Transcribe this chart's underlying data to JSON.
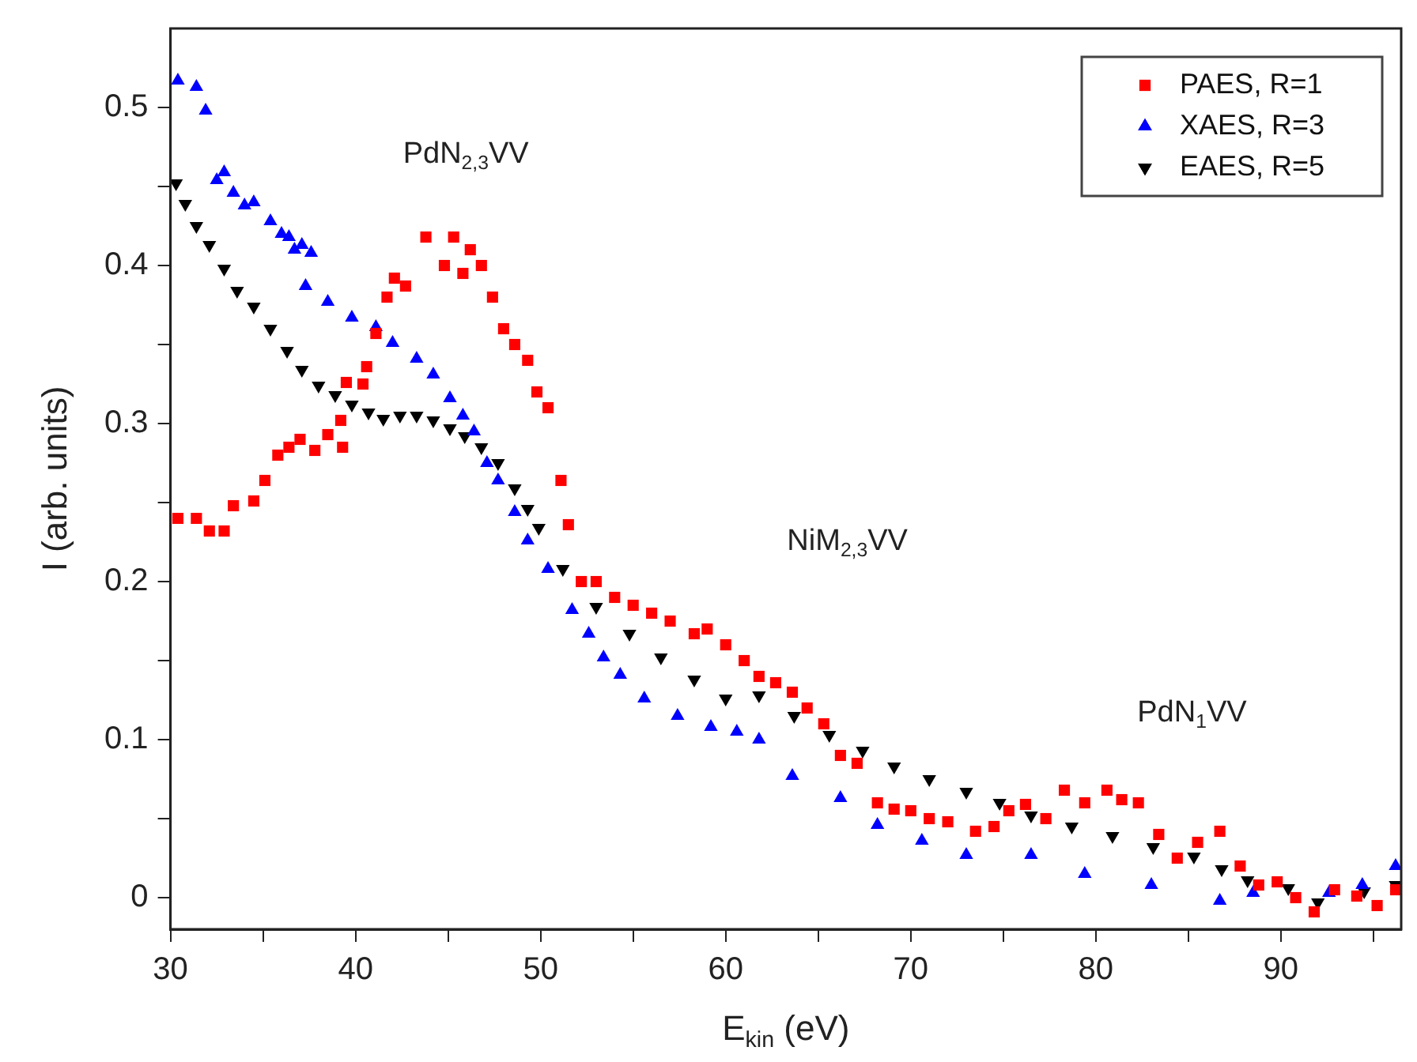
{
  "chart_data": {
    "type": "scatter",
    "xlabel": "E$_{kin}$ (eV)",
    "ylabel": "I (arb. units)",
    "xlim": [
      30,
      96.5
    ],
    "xticks": [
      30,
      {
        "value": 35,
        "label": null
      },
      40,
      {
        "value": 45,
        "label": null
      },
      50,
      {
        "value": 55,
        "label": null
      },
      60,
      {
        "value": 65,
        "label": null
      },
      70,
      {
        "value": 75,
        "label": null
      },
      80,
      {
        "value": 85,
        "label": null
      },
      90,
      {
        "value": 95,
        "label": null
      }
    ],
    "ylim": [
      -0.02,
      0.55
    ],
    "yticks": [
      0,
      {
        "value": 0.05,
        "label": null
      },
      0.1,
      {
        "value": 0.15,
        "label": null
      },
      0.2,
      {
        "value": 0.25,
        "label": null
      },
      0.3,
      {
        "value": 0.35,
        "label": null
      },
      0.4,
      {
        "value": 0.45,
        "label": null
      },
      0.5
    ],
    "grid": false,
    "legend": "top right",
    "annotations": [
      "PdN$_{2,3}$VV",
      "NiM$_{2,3}$VV",
      "PdN$_{1}$VV"
    ],
    "series": [
      {
        "name": "PAES, R=1",
        "color": "#ff0000",
        "marker": "square",
        "x": [
          30.4,
          31.4,
          32.1,
          32.9,
          33.4,
          34.5,
          35.1,
          35.8,
          36.4,
          37,
          37.8,
          38.5,
          39.3,
          39.2,
          39.5,
          40.4,
          40.6,
          41.1,
          41.7,
          42.1,
          42.7,
          43.8,
          44.8,
          45.3,
          45.8,
          46.2,
          46.8,
          47.4,
          48,
          48.6,
          49.3,
          49.8,
          50.4,
          51.1,
          51.5,
          52.2,
          53,
          54,
          55,
          56,
          57,
          58.3,
          59,
          60,
          61,
          61.8,
          62.7,
          63.6,
          64.4,
          65.3,
          66.2,
          67.1,
          68.2,
          69.1,
          70,
          71,
          72,
          73.5,
          74.5,
          75.3,
          76.2,
          77.3,
          78.3,
          79.4,
          80.6,
          81.4,
          82.3,
          83.4,
          84.4,
          85.5,
          86.7,
          87.8,
          88.8,
          89.8,
          90.8,
          91.8,
          92.9,
          94.1,
          95.2,
          96.2
        ],
        "values": [
          0.24,
          0.24,
          0.232,
          0.232,
          0.248,
          0.251,
          0.264,
          0.28,
          0.285,
          0.29,
          0.283,
          0.293,
          0.285,
          0.302,
          0.326,
          0.325,
          0.336,
          0.357,
          0.38,
          0.392,
          0.387,
          0.418,
          0.4,
          0.418,
          0.395,
          0.41,
          0.4,
          0.38,
          0.36,
          0.35,
          0.34,
          0.32,
          0.31,
          0.264,
          0.236,
          0.2,
          0.2,
          0.19,
          0.185,
          0.18,
          0.175,
          0.167,
          0.17,
          0.16,
          0.15,
          0.14,
          0.136,
          0.13,
          0.12,
          0.11,
          0.09,
          0.085,
          0.06,
          0.056,
          0.055,
          0.05,
          0.048,
          0.042,
          0.045,
          0.055,
          0.059,
          0.05,
          0.068,
          0.06,
          0.068,
          0.062,
          0.06,
          0.04,
          0.025,
          0.035,
          0.042,
          0.02,
          0.008,
          0.01,
          0.0,
          -0.009,
          0.005,
          0.001,
          -0.005,
          0.005
        ]
      },
      {
        "name": "XAES, R=3",
        "color": "#0000ff",
        "marker": "triangle",
        "x": [
          30.4,
          31.4,
          31.9,
          32.5,
          32.9,
          33.4,
          34,
          34.5,
          35.4,
          36,
          36.4,
          36.7,
          37.1,
          37.6,
          37.3,
          38.5,
          39.8,
          41.1,
          42,
          43.3,
          44.2,
          45.1,
          45.8,
          46.4,
          47.1,
          47.7,
          48.6,
          49.3,
          50.4,
          51.7,
          52.6,
          53.4,
          54.3,
          55.6,
          57.4,
          59.2,
          60.6,
          61.8,
          63.6,
          66.2,
          68.2,
          70.6,
          73,
          76.5,
          79.4,
          83,
          86.7,
          88.5,
          92.6,
          94.4,
          96.2
        ],
        "values": [
          0.517,
          0.513,
          0.498,
          0.454,
          0.459,
          0.446,
          0.438,
          0.44,
          0.428,
          0.42,
          0.418,
          0.41,
          0.413,
          0.408,
          0.387,
          0.377,
          0.367,
          0.361,
          0.351,
          0.341,
          0.331,
          0.316,
          0.305,
          0.295,
          0.275,
          0.264,
          0.244,
          0.226,
          0.208,
          0.182,
          0.167,
          0.152,
          0.141,
          0.126,
          0.115,
          0.108,
          0.105,
          0.1,
          0.077,
          0.063,
          0.046,
          0.036,
          0.027,
          0.027,
          0.015,
          0.008,
          -0.002,
          0.003,
          0.003,
          0.008,
          0.02
        ]
      },
      {
        "name": "EAES, R=5",
        "color": "#000000",
        "marker": "triangle-down",
        "x": [
          30.3,
          30.8,
          31.4,
          32.1,
          32.9,
          33.6,
          34.5,
          35.4,
          36.3,
          37.1,
          38,
          38.9,
          39.8,
          40.7,
          41.5,
          42.4,
          43.3,
          44.2,
          45.1,
          45.9,
          46.8,
          47.7,
          48.6,
          49.3,
          49.9,
          51.2,
          53,
          54.8,
          56.5,
          58.3,
          60,
          61.8,
          63.7,
          65.6,
          67.4,
          69.1,
          71,
          73,
          74.8,
          76.5,
          78.7,
          80.9,
          83.1,
          85.3,
          86.8,
          88.2,
          90.4,
          92.0,
          94.5,
          96.2
        ],
        "values": [
          0.452,
          0.439,
          0.425,
          0.413,
          0.398,
          0.384,
          0.374,
          0.36,
          0.346,
          0.334,
          0.324,
          0.318,
          0.312,
          0.307,
          0.303,
          0.305,
          0.305,
          0.302,
          0.297,
          0.292,
          0.285,
          0.275,
          0.259,
          0.246,
          0.234,
          0.208,
          0.184,
          0.167,
          0.152,
          0.138,
          0.126,
          0.128,
          0.115,
          0.103,
          0.093,
          0.083,
          0.075,
          0.067,
          0.06,
          0.052,
          0.045,
          0.039,
          0.032,
          0.026,
          0.018,
          0.011,
          0.006,
          -0.003,
          0.004,
          0.008
        ]
      }
    ]
  }
}
